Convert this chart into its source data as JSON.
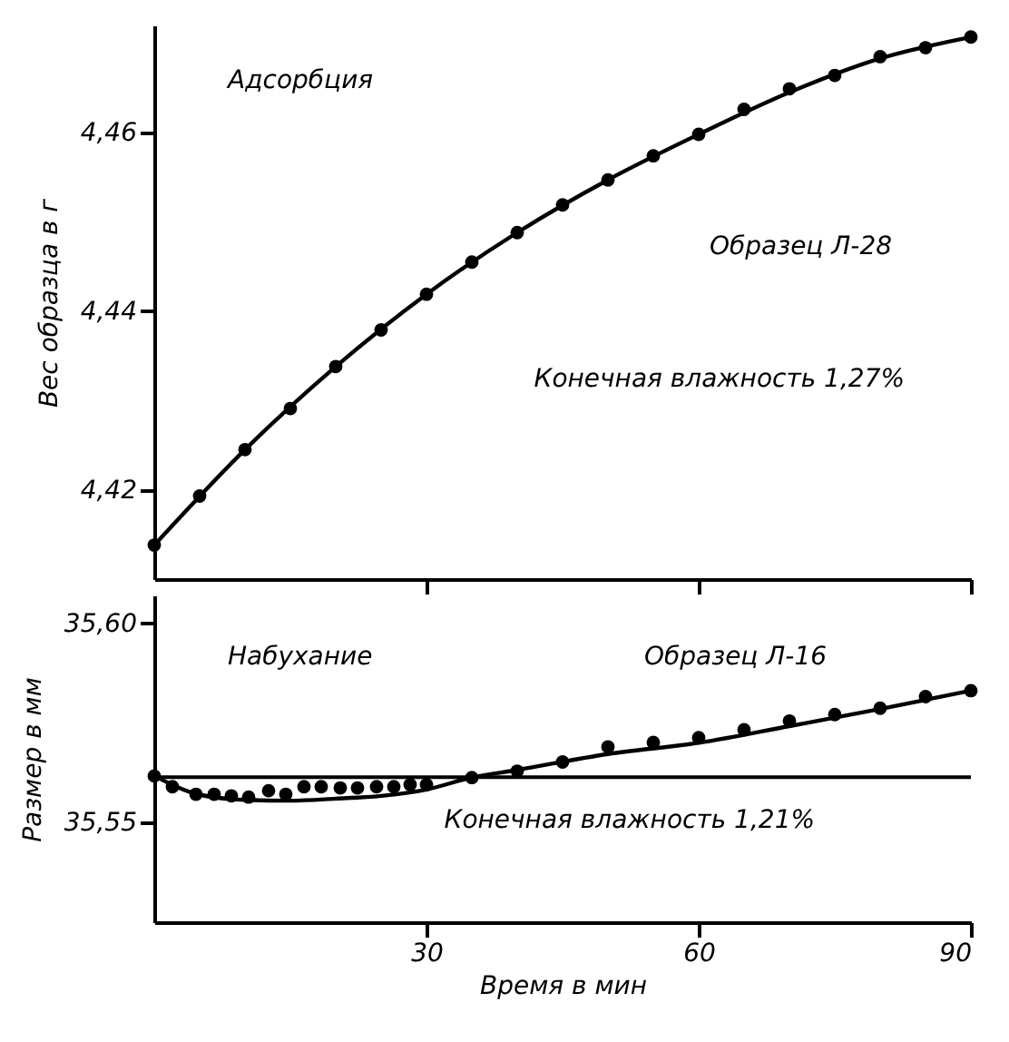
{
  "chart_data": [
    {
      "type": "scatter",
      "ylabel": "Вес образца в г",
      "xlim": [
        0,
        90
      ],
      "xticks": [
        30,
        60,
        90
      ],
      "ylim": [
        4.41,
        4.472
      ],
      "yticks": [
        {
          "value": 4.42,
          "label": "4,42"
        },
        {
          "value": 4.44,
          "label": "4,44"
        },
        {
          "value": 4.46,
          "label": "4,46"
        }
      ],
      "tick_labels": "y",
      "grid": false,
      "annotations": [
        "Адсорбция",
        "Образец Л-28",
        "Конечная влажность 1,27%"
      ],
      "series": [
        {
          "marker": "circle",
          "color": "#000000",
          "x": [
            0,
            5,
            10,
            15,
            20,
            25,
            30,
            35,
            40,
            45,
            50,
            55,
            60,
            65,
            70,
            75,
            80,
            85,
            90
          ],
          "values": [
            4.4138,
            4.4193,
            4.4245,
            4.4291,
            4.4338,
            4.4379,
            4.4419,
            4.4455,
            4.4488,
            4.4519,
            4.4547,
            4.4574,
            4.4598,
            4.4626,
            4.4649,
            4.4664,
            4.4685,
            4.4695,
            4.4707
          ]
        },
        {
          "type": "line",
          "marker": "none",
          "color": "#000000",
          "x": [
            0,
            10,
            20,
            30,
            40,
            50,
            60,
            70,
            80,
            90
          ],
          "values": [
            4.4138,
            4.4245,
            4.4338,
            4.4419,
            4.4488,
            4.4547,
            4.4598,
            4.4645,
            4.4683,
            4.4707
          ]
        }
      ]
    },
    {
      "type": "scatter",
      "ylabel": "Размер в мм",
      "xlabel": "Время в мин",
      "xlim": [
        0,
        90
      ],
      "xticks": [
        30,
        60,
        90
      ],
      "ylim": [
        35.525,
        35.607
      ],
      "yticks": [
        {
          "value": 35.55,
          "label": "35,55"
        },
        {
          "value": 35.6,
          "label": "35,60"
        }
      ],
      "grid": false,
      "annotations": [
        "Набухание",
        "Образец Л-16",
        "Конечная влажность 1,21%"
      ],
      "ref_lines": [
        {
          "axis": "y",
          "value": 35.5614
        }
      ],
      "series": [
        {
          "marker": "circle",
          "color": "#000000",
          "x": [
            0,
            2,
            4.6,
            6.6,
            8.5,
            10.4,
            12.6,
            14.5,
            16.5,
            18.4,
            20.5,
            22.4,
            24.5,
            26.4,
            28.2,
            30,
            35,
            40,
            45,
            50,
            55,
            60,
            65,
            70,
            75,
            80,
            85,
            90
          ],
          "values": [
            35.5617,
            35.559,
            35.5571,
            35.5571,
            35.5567,
            35.5564,
            35.558,
            35.5571,
            35.559,
            35.559,
            35.5587,
            35.5587,
            35.559,
            35.559,
            35.5595,
            35.5595,
            35.5613,
            35.5629,
            35.5652,
            35.569,
            35.5701,
            35.5713,
            35.5733,
            35.5755,
            35.5771,
            35.5787,
            35.5816,
            35.5831
          ]
        },
        {
          "type": "line",
          "marker": "none",
          "color": "#000000",
          "x": [
            0,
            5,
            10,
            15,
            20,
            25,
            30,
            35,
            40,
            50,
            60,
            70,
            80,
            90
          ],
          "values": [
            35.5617,
            35.557,
            35.5557,
            35.5555,
            35.556,
            35.5567,
            35.5583,
            35.5613,
            35.5632,
            35.5672,
            35.57,
            35.5742,
            35.5785,
            35.5831
          ]
        }
      ]
    }
  ]
}
